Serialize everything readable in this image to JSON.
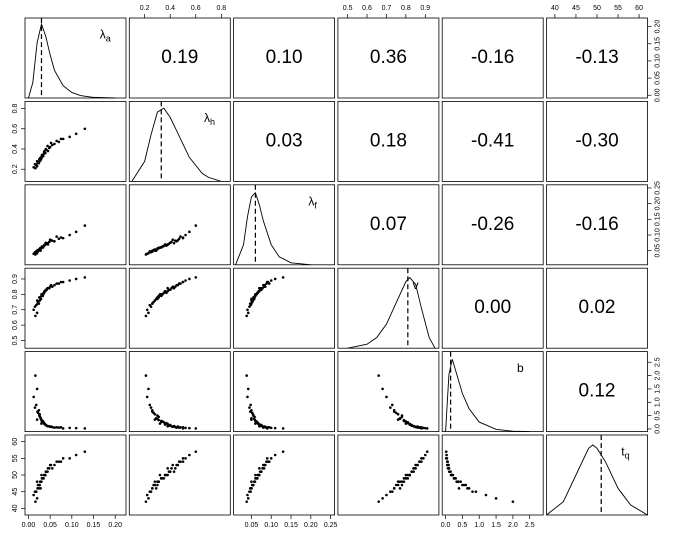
{
  "chart_data": {
    "type": "scatter_matrix",
    "variables": [
      {
        "symbol": "λ",
        "subscript": "a",
        "lim": [
          -0.008,
          0.225
        ],
        "ticks": [
          {
            "value": 0,
            "label": "0.00"
          },
          0.05,
          {
            "value": 0.1,
            "label": "0.10"
          },
          0.15,
          {
            "value": 0.2,
            "label": "0.20"
          }
        ],
        "median": 0.03,
        "density_x": [
          0,
          0.01,
          0.02,
          0.03,
          0.04,
          0.05,
          0.06,
          0.08,
          0.1,
          0.12,
          0.15,
          0.2
        ],
        "density_y": [
          0,
          5,
          18,
          24,
          20,
          14,
          9,
          4,
          1.8,
          0.8,
          0.2,
          0
        ],
        "density_ylim": [
          0,
          26
        ],
        "values": [
          0.03,
          0.02,
          0.045,
          0.025,
          0.06,
          0.015,
          0.035,
          0.08,
          0.028,
          0.04,
          0.012,
          0.05,
          0.033,
          0.022,
          0.11,
          0.038,
          0.027,
          0.065,
          0.018,
          0.042,
          0.031,
          0.055,
          0.024,
          0.036,
          0.095,
          0.02,
          0.048,
          0.029,
          0.039,
          0.07,
          0.016,
          0.044,
          0.026,
          0.034,
          0.13,
          0.021,
          0.052,
          0.03,
          0.037,
          0.075
        ]
      },
      {
        "symbol": "λ",
        "subscript": "h",
        "lim": [
          0.08,
          0.87
        ],
        "ticks": [
          0.2,
          0.4,
          0.6,
          0.8
        ],
        "median": 0.33,
        "density_x": [
          0.1,
          0.2,
          0.25,
          0.3,
          0.35,
          0.4,
          0.45,
          0.5,
          0.55,
          0.6,
          0.65,
          0.7,
          0.8
        ],
        "density_y": [
          0,
          1.5,
          3.5,
          5.2,
          5.5,
          4.8,
          3.8,
          2.8,
          1.8,
          1.2,
          0.6,
          0.3,
          0
        ],
        "density_ylim": [
          0,
          6
        ],
        "values": [
          0.32,
          0.28,
          0.38,
          0.3,
          0.45,
          0.25,
          0.35,
          0.5,
          0.29,
          0.4,
          0.22,
          0.42,
          0.33,
          0.27,
          0.55,
          0.36,
          0.31,
          0.48,
          0.24,
          0.39,
          0.34,
          0.44,
          0.26,
          0.37,
          0.52,
          0.23,
          0.41,
          0.3,
          0.36,
          0.47,
          0.21,
          0.43,
          0.28,
          0.33,
          0.6,
          0.26,
          0.46,
          0.31,
          0.38,
          0.5
        ]
      },
      {
        "symbol": "λ",
        "subscript": "f",
        "lim": [
          0.005,
          0.26
        ],
        "ticks": [
          0.05,
          {
            "value": 0.1,
            "label": "0.10"
          },
          0.15,
          {
            "value": 0.2,
            "label": "0.20"
          },
          0.25
        ],
        "median": 0.06,
        "density_x": [
          0.01,
          0.03,
          0.04,
          0.05,
          0.06,
          0.07,
          0.08,
          0.1,
          0.12,
          0.15,
          0.2
        ],
        "density_y": [
          0,
          5,
          12,
          17,
          18,
          15,
          11,
          5,
          2,
          0.5,
          0
        ],
        "density_ylim": [
          0,
          20
        ],
        "values": [
          0.06,
          0.05,
          0.07,
          0.055,
          0.08,
          0.045,
          0.065,
          0.09,
          0.05,
          0.075,
          0.04,
          0.085,
          0.06,
          0.052,
          0.11,
          0.068,
          0.058,
          0.095,
          0.048,
          0.072,
          0.063,
          0.082,
          0.05,
          0.066,
          0.1,
          0.042,
          0.078,
          0.057,
          0.07,
          0.088,
          0.038,
          0.074,
          0.054,
          0.061,
          0.13,
          0.047,
          0.083,
          0.059,
          0.069,
          0.092
        ]
      },
      {
        "symbol": "v",
        "lim": [
          0.45,
          0.97
        ],
        "ticks": [
          0.5,
          0.6,
          0.7,
          0.8,
          0.9
        ],
        "median": 0.81,
        "density_x": [
          0.5,
          0.6,
          0.65,
          0.7,
          0.75,
          0.8,
          0.82,
          0.85,
          0.88,
          0.92,
          0.95
        ],
        "density_y": [
          0,
          0.3,
          0.8,
          1.8,
          3.4,
          5,
          5.3,
          4.8,
          3,
          0.8,
          0
        ],
        "density_ylim": [
          0,
          6
        ],
        "values": [
          0.8,
          0.76,
          0.84,
          0.78,
          0.86,
          0.72,
          0.81,
          0.88,
          0.77,
          0.83,
          0.7,
          0.85,
          0.79,
          0.75,
          0.9,
          0.82,
          0.78,
          0.87,
          0.73,
          0.83,
          0.8,
          0.85,
          0.74,
          0.81,
          0.89,
          0.68,
          0.84,
          0.77,
          0.82,
          0.87,
          0.66,
          0.84,
          0.76,
          0.8,
          0.91,
          0.74,
          0.86,
          0.79,
          0.82,
          0.88
        ]
      },
      {
        "symbol": "b",
        "lim": [
          -0.1,
          2.9
        ],
        "ticks": [
          {
            "value": 0,
            "label": "0.0"
          },
          0.5,
          {
            "value": 1,
            "label": "1.0"
          },
          1.5,
          {
            "value": 2,
            "label": "2.0"
          },
          2.5
        ],
        "median": 0.15,
        "density_x": [
          0,
          0.1,
          0.2,
          0.3,
          0.5,
          0.7,
          1,
          1.5,
          2,
          2.5
        ],
        "density_y": [
          0,
          1.5,
          1.9,
          1.6,
          1,
          0.6,
          0.25,
          0.06,
          0.01,
          0
        ],
        "density_ylim": [
          0,
          2.1
        ],
        "values": [
          0.2,
          0.35,
          0.1,
          0.5,
          0.05,
          0.8,
          0.25,
          0.02,
          0.4,
          0.15,
          1.2,
          0.08,
          0.3,
          0.6,
          0.03,
          0.18,
          0.45,
          0.06,
          0.9,
          0.12,
          0.28,
          0.07,
          0.7,
          0.22,
          0.04,
          1.5,
          0.1,
          0.38,
          0.16,
          0.05,
          2.0,
          0.11,
          0.55,
          0.26,
          0.02,
          0.65,
          0.09,
          0.33,
          0.19,
          0.06
        ]
      },
      {
        "symbol": "t",
        "subscript": "q",
        "lim": [
          38,
          62
        ],
        "ticks": [
          40,
          45,
          50,
          55,
          60
        ],
        "median": 51,
        "density_x": [
          38,
          42,
          45,
          48,
          49,
          50,
          52,
          55,
          58,
          62
        ],
        "density_y": [
          0,
          0.02,
          0.06,
          0.1,
          0.105,
          0.1,
          0.08,
          0.04,
          0.015,
          0
        ],
        "density_ylim": [
          0,
          0.12
        ],
        "values": [
          50,
          48,
          52,
          47,
          53,
          45,
          49,
          55,
          46,
          51,
          44,
          53,
          49,
          47,
          56,
          50,
          48,
          54,
          45,
          51,
          49,
          52,
          46,
          50,
          55,
          43,
          52,
          48,
          50,
          54,
          42,
          51,
          47,
          49,
          57,
          46,
          53,
          48,
          50,
          54
        ]
      }
    ],
    "correlations": [
      [
        null,
        0.19,
        0.1,
        0.36,
        -0.16,
        -0.13
      ],
      [
        null,
        null,
        0.03,
        0.18,
        -0.41,
        -0.3
      ],
      [
        null,
        null,
        null,
        0.07,
        -0.26,
        -0.16
      ],
      [
        null,
        null,
        null,
        null,
        0.0,
        0.02
      ],
      [
        null,
        null,
        null,
        null,
        null,
        0.12
      ],
      [
        null,
        null,
        null,
        null,
        null,
        null
      ]
    ],
    "value_labels": [
      [
        null,
        "0.19",
        "0.10",
        "0.36",
        "-0.16",
        "-0.13"
      ],
      [
        null,
        null,
        "0.03",
        "0.18",
        "-0.41",
        "-0.30"
      ],
      [
        null,
        null,
        null,
        "0.07",
        "-0.26",
        "-0.16"
      ],
      [
        null,
        null,
        null,
        null,
        "0.00",
        "0.02"
      ],
      [
        null,
        null,
        null,
        null,
        null,
        "0.12"
      ],
      [
        null,
        null,
        null,
        null,
        null,
        null
      ]
    ],
    "point_color": "#000000",
    "line_color": "#000000"
  }
}
